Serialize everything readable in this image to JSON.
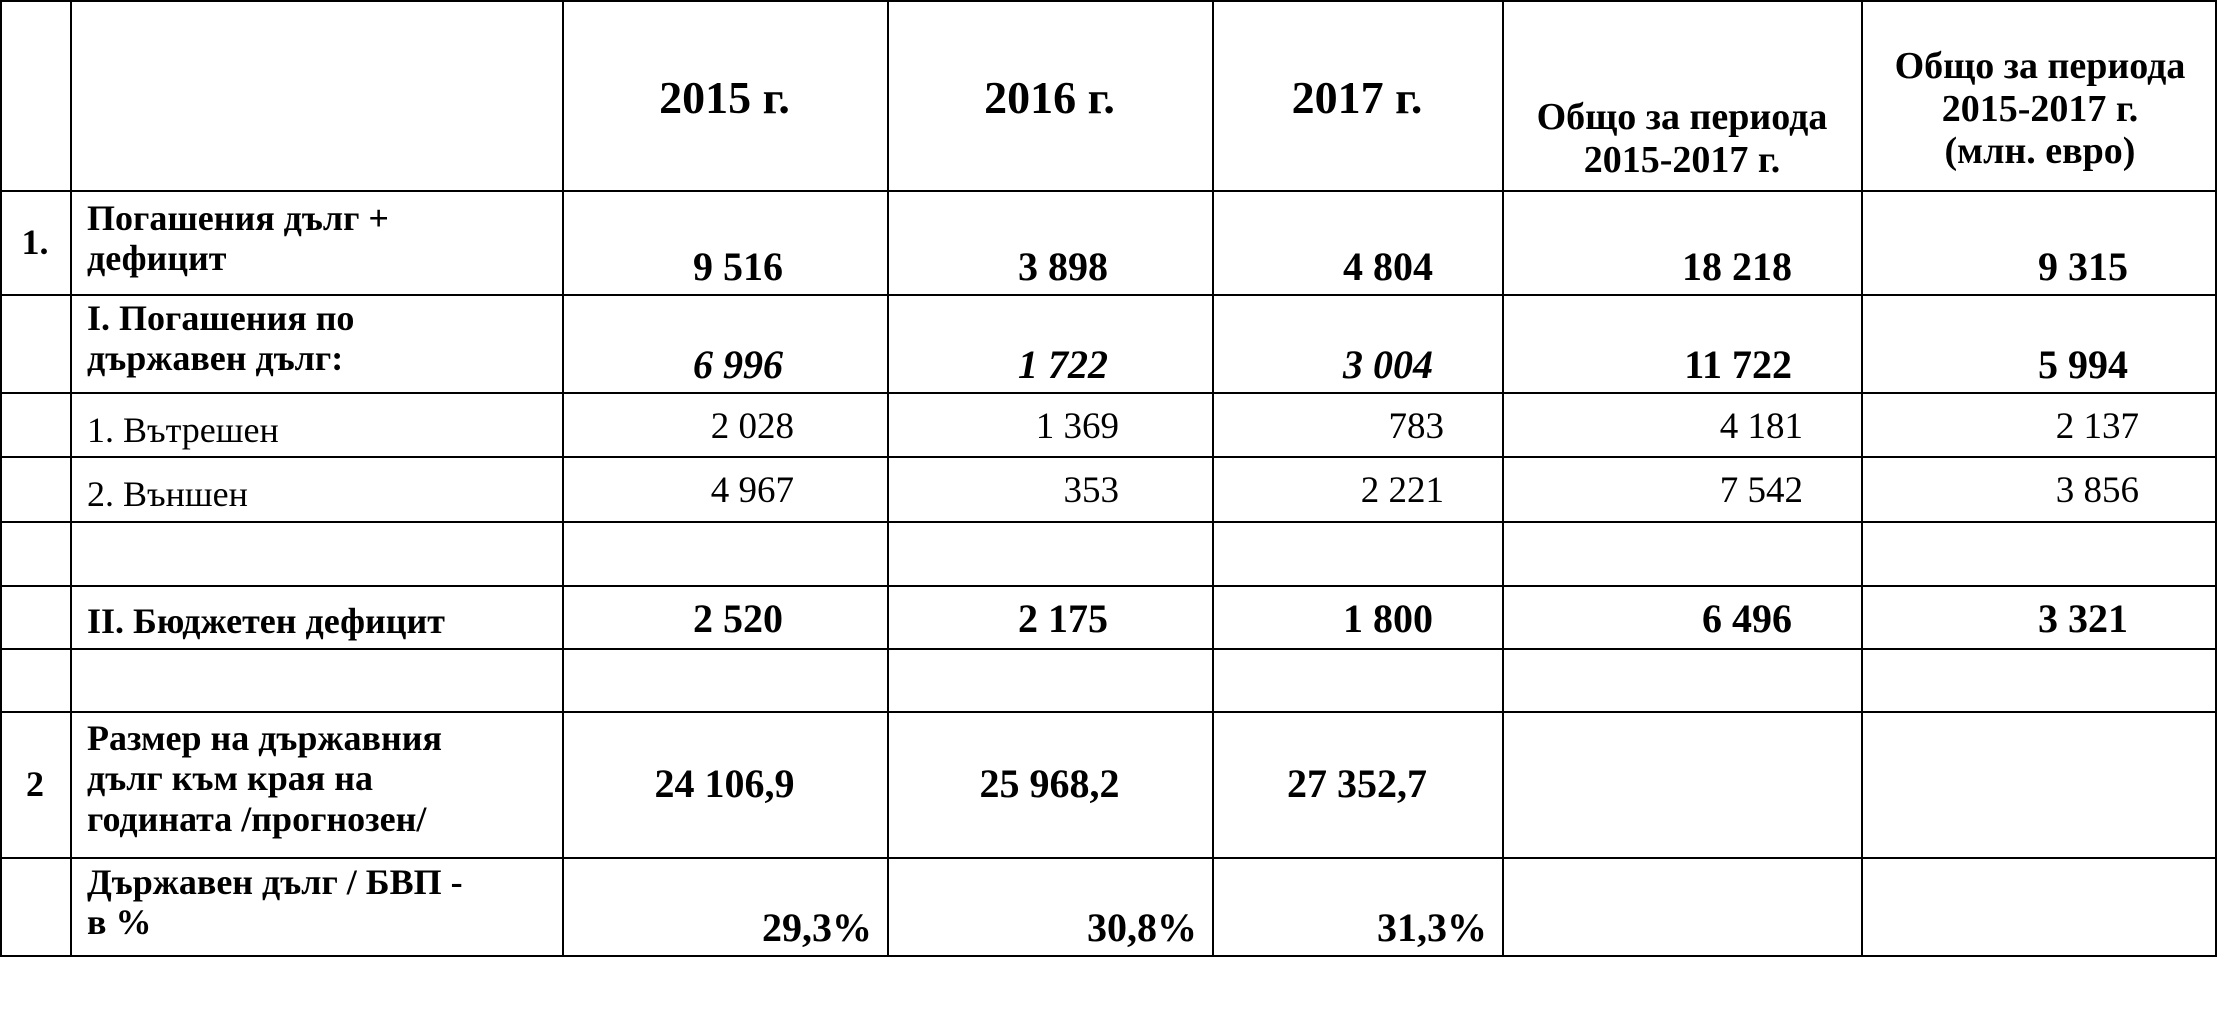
{
  "header": {
    "years": [
      "2015 г.",
      "2016 г.",
      "2017 г."
    ],
    "total_label": "Общо за периода\n2015-2017 г.",
    "total_eur_label": "Общо за периода\n2015-2017 г.\n(млн. евро)"
  },
  "rows": [
    {
      "index": "1.",
      "label": "Погашения дълг +\nдефицит",
      "values": [
        "9 516",
        "3 898",
        "4 804",
        "18 218",
        "9 315"
      ]
    },
    {
      "index": "",
      "label": "I. Погашения по\nдържавен дълг:",
      "values": [
        "6 996",
        "1 722",
        "3 004",
        "11 722",
        "5 994"
      ]
    },
    {
      "index": "",
      "label": "1. Вътрешен",
      "values": [
        "2 028",
        "1 369",
        "783",
        "4 181",
        "2 137"
      ]
    },
    {
      "index": "",
      "label": "2. Външен",
      "values": [
        "4 967",
        "353",
        "2 221",
        "7 542",
        "3 856"
      ]
    },
    {
      "index": "",
      "label": "",
      "values": [
        "",
        "",
        "",
        "",
        ""
      ]
    },
    {
      "index": "",
      "label": "II. Бюджетен дефицит",
      "values": [
        "2 520",
        "2 175",
        "1 800",
        "6 496",
        "3 321"
      ]
    },
    {
      "index": "",
      "label": "",
      "values": [
        "",
        "",
        "",
        "",
        ""
      ]
    },
    {
      "index": "2",
      "label": "Размер на държавния\nдълг към края на\nгодината /прогнозен/",
      "values": [
        "24 106,9",
        "25 968,2",
        "27 352,7",
        "",
        ""
      ]
    },
    {
      "index": "",
      "label": "Държавен дълг / БВП -\nв %",
      "values": [
        "29,3%",
        "30,8%",
        "31,3%",
        "",
        ""
      ]
    }
  ]
}
